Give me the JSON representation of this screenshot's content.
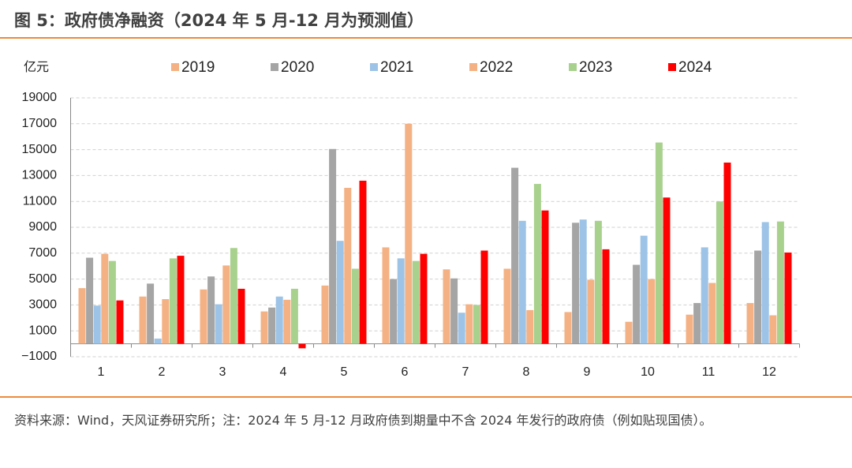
{
  "title": "图 5：政府债净融资（2024 年 5 月-12 月为预测值）",
  "note": "资料来源：Wind，天风证券研究所；注：2024 年 5 月-12 月政府债到期量中不含 2024 年发行的政府债（例如贴现国债）。",
  "chart_data": {
    "type": "bar",
    "y_unit": "亿元",
    "categories": [
      "1",
      "2",
      "3",
      "4",
      "5",
      "6",
      "7",
      "8",
      "9",
      "10",
      "11",
      "12"
    ],
    "series": [
      {
        "name": "2019",
        "color": "#f4b183",
        "values": [
          4300,
          3650,
          4200,
          2500,
          4500,
          7450,
          5750,
          5800,
          2450,
          1700,
          2250,
          3150
        ]
      },
      {
        "name": "2020",
        "color": "#a5a5a5",
        "values": [
          6650,
          4650,
          5200,
          2800,
          15050,
          5000,
          5050,
          13600,
          9350,
          6100,
          3150,
          7200
        ]
      },
      {
        "name": "2021",
        "color": "#9dc3e6",
        "values": [
          2950,
          400,
          3050,
          3650,
          7950,
          6600,
          2400,
          9500,
          9600,
          8350,
          7450,
          9400
        ]
      },
      {
        "name": "2022",
        "color": "#f4b183",
        "values": [
          6950,
          3450,
          6050,
          3400,
          12050,
          17000,
          3050,
          2600,
          4950,
          5000,
          4700,
          2200
        ]
      },
      {
        "name": "2023",
        "color": "#a9d18e",
        "values": [
          6400,
          6600,
          7400,
          4250,
          5800,
          6400,
          3000,
          12350,
          9500,
          15550,
          11000,
          9450
        ]
      },
      {
        "name": "2024",
        "color": "#ff0000",
        "values": [
          3350,
          6800,
          4250,
          -350,
          12600,
          6950,
          7200,
          10300,
          7300,
          11300,
          14000,
          7050
        ]
      }
    ],
    "ylim": [
      -1000,
      19000
    ],
    "yticks": [
      {
        "value": -1000,
        "label": "−1000"
      },
      1000,
      3000,
      5000,
      7000,
      9000,
      11000,
      13000,
      15000,
      17000,
      19000
    ],
    "grid": true,
    "legend": "top"
  }
}
